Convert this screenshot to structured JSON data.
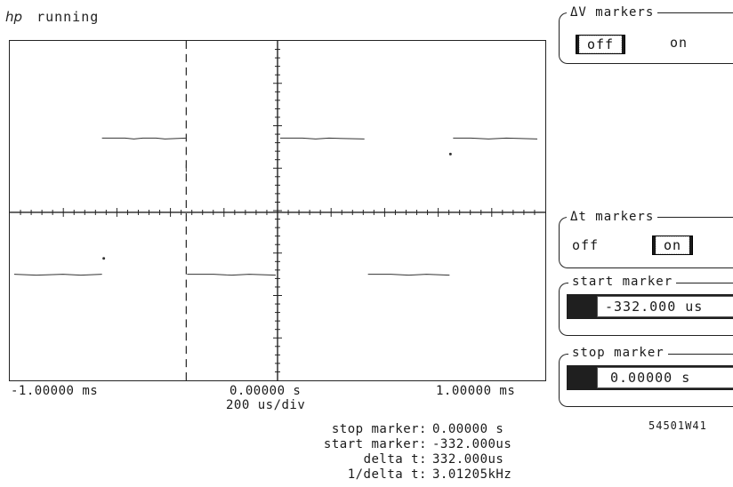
{
  "header": {
    "brand": "hp",
    "status": "running"
  },
  "axis": {
    "left_time": "-1.00000 ms",
    "center_time": "0.00000  s",
    "right_time": "1.00000 ms",
    "time_per_div": "200  us/div"
  },
  "readouts": [
    {
      "label": "stop marker:",
      "value": "0.00000  s"
    },
    {
      "label": "start marker:",
      "value": "-332.000us"
    },
    {
      "label": "delta t:",
      "value": "332.000us"
    },
    {
      "label": "1/delta t:",
      "value": "3.01205kHz"
    }
  ],
  "softkeys": {
    "delta_v_markers": {
      "title": "ΔV markers",
      "off_label": "off",
      "on_label": "on",
      "selected": "off"
    },
    "delta_t_markers": {
      "title": "Δt markers",
      "off_label": "off",
      "on_label": "on",
      "selected": "on"
    },
    "start_marker": {
      "title": "start marker",
      "value": "-332.000 us"
    },
    "stop_marker": {
      "title": "stop marker",
      "value": "0.00000  s"
    }
  },
  "model_number": "54501W41",
  "colors": {
    "ink": "#1a1a1a",
    "background": "#ffffff",
    "highlight": "#1f1f1f"
  },
  "icons": {
    "marker_line": "dashed-vertical-line"
  }
}
